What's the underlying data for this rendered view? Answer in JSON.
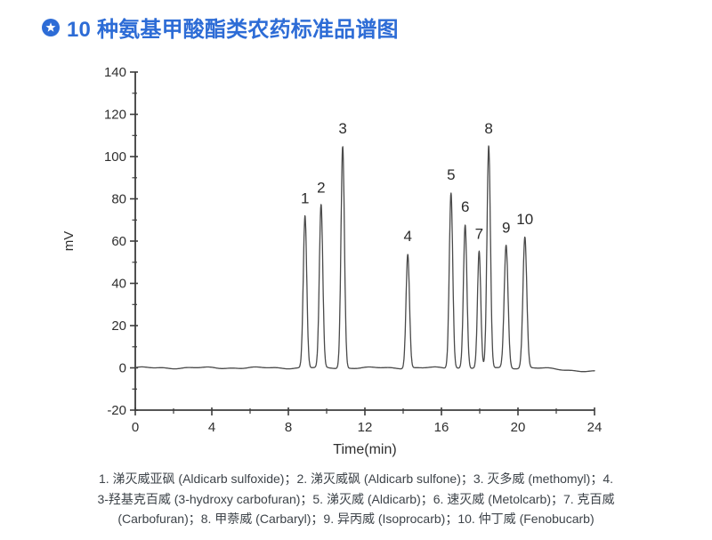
{
  "header": {
    "icon": "badge-star-icon",
    "title": "10 种氨基甲酸酯类农药标准品谱图",
    "accent_color": "#2d6cd6"
  },
  "chart_data": {
    "type": "line",
    "subtype": "chromatogram",
    "title": "10 种氨基甲酸酯类农药标准品谱图",
    "xlabel": "Time(min)",
    "ylabel": "mV",
    "xlim": [
      0,
      24
    ],
    "ylim": [
      -20,
      140
    ],
    "x_major_ticks": [
      0,
      4,
      8,
      12,
      16,
      20,
      24
    ],
    "x_minor_step": 2,
    "y_major_ticks": [
      -20,
      0,
      20,
      40,
      60,
      80,
      100,
      120,
      140
    ],
    "y_minor_step": 10,
    "grid": false,
    "legend": "none",
    "line_color": "#4a4a4a",
    "axis_color": "#3d3d3d",
    "text_color": "#2f2f2f",
    "peak_number_color": "#2b2b2b",
    "baseline_mV": 0,
    "end_drift": {
      "start_min": 20.8,
      "slope_mV_per_min": -0.55
    },
    "peak_label_offset_mV": 6,
    "peaks": [
      {
        "n": "1",
        "time_min": 8.87,
        "height_mV": 72,
        "sigma_min": 0.09,
        "name_cn": "涕灭威亚砜",
        "name_en": "Aldicarb sulfoxide"
      },
      {
        "n": "2",
        "time_min": 9.71,
        "height_mV": 77,
        "sigma_min": 0.09,
        "name_cn": "涕灭威砜",
        "name_en": "Aldicarb sulfone"
      },
      {
        "n": "3",
        "time_min": 10.84,
        "height_mV": 105,
        "sigma_min": 0.09,
        "name_cn": "灭多威",
        "name_en": "methomyl"
      },
      {
        "n": "4",
        "time_min": 14.24,
        "height_mV": 54,
        "sigma_min": 0.09,
        "name_cn": "3-羟基克百威",
        "name_en": "3-hydroxy carbofuran"
      },
      {
        "n": "5",
        "time_min": 16.5,
        "height_mV": 83,
        "sigma_min": 0.09,
        "name_cn": "涕灭威",
        "name_en": "Aldicarb"
      },
      {
        "n": "6",
        "time_min": 17.24,
        "height_mV": 68,
        "sigma_min": 0.09,
        "name_cn": "速灭威",
        "name_en": "Metolcarb"
      },
      {
        "n": "7",
        "time_min": 17.97,
        "height_mV": 55,
        "sigma_min": 0.085,
        "name_cn": "克百威",
        "name_en": "Carbofuran"
      },
      {
        "n": "8",
        "time_min": 18.47,
        "height_mV": 105,
        "sigma_min": 0.09,
        "name_cn": "甲萘威",
        "name_en": "Carbaryl"
      },
      {
        "n": "9",
        "time_min": 19.38,
        "height_mV": 58,
        "sigma_min": 0.1,
        "name_cn": "异丙威",
        "name_en": "Isoprocarb"
      },
      {
        "n": "10",
        "time_min": 20.36,
        "height_mV": 62,
        "sigma_min": 0.1,
        "name_cn": "仲丁威",
        "name_en": "Fenobucarb"
      }
    ]
  },
  "caption": {
    "lines": [
      "1. 涕灭威亚砜 (Aldicarb sulfoxide)；2. 涕灭威砜 (Aldicarb sulfone)；3. 灭多威 (methomyl)；4.",
      "3-羟基克百威 (3-hydroxy carbofuran)；5. 涕灭威 (Aldicarb)；6. 速灭威 (Metolcarb)；7. 克百威",
      "(Carbofuran)；8. 甲萘威 (Carbaryl)；9. 异丙威 (Isoprocarb)；10. 仲丁威 (Fenobucarb)"
    ]
  }
}
